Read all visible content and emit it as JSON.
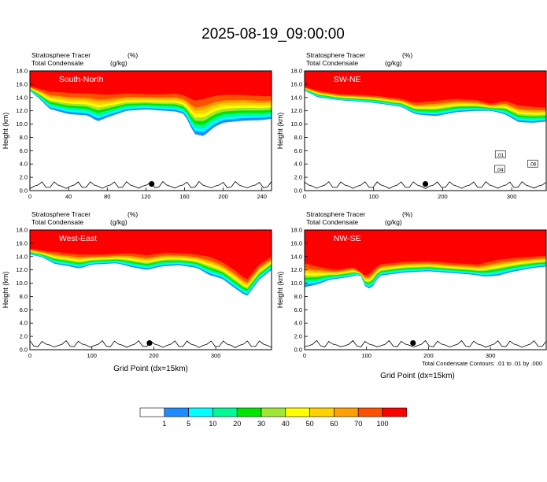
{
  "figure": {
    "title": "2025-08-19_09:00:00",
    "contour_note": "Total Condensate Contours: .01 to .01 by .000",
    "colorbar": {
      "colors": [
        "#ffffff",
        "#1e8cff",
        "#00ffff",
        "#00fa96",
        "#00e600",
        "#a0e632",
        "#ffff00",
        "#ffd200",
        "#ffa000",
        "#ff5000",
        "#ff0000"
      ],
      "labels": [
        "1",
        "5",
        "10",
        "20",
        "30",
        "40",
        "50",
        "60",
        "70",
        "100"
      ]
    }
  },
  "chart_data": [
    {
      "type": "heatmap",
      "title": "South-North",
      "field_label": "Stratosphere Tracer",
      "field_unit": "(%)",
      "contour_label": "Total Condensate",
      "contour_unit": "(g/kg)",
      "ylabel": "Height (km)",
      "xlabel": "",
      "xlim": [
        0,
        250
      ],
      "ylim": [
        0,
        18
      ],
      "xticks": [
        0,
        40,
        80,
        120,
        160,
        200,
        240
      ],
      "yticks": [
        "0.0",
        "2.0",
        "4.0",
        "6.0",
        "8.0",
        "10.0",
        "12.0",
        "14.0",
        "16.0",
        "18.0"
      ],
      "marker": {
        "x": 126,
        "y": 1.0
      },
      "contour_labels": [],
      "red_top": [
        [
          0,
          15.7
        ],
        [
          10,
          15.3
        ],
        [
          20,
          14.9
        ],
        [
          40,
          14.7
        ],
        [
          60,
          14.6
        ],
        [
          80,
          14.4
        ],
        [
          100,
          14.6
        ],
        [
          120,
          14.5
        ],
        [
          140,
          14.5
        ],
        [
          150,
          14.6
        ],
        [
          160,
          14.3
        ],
        [
          170,
          13.5
        ],
        [
          180,
          13.8
        ],
        [
          190,
          14.2
        ],
        [
          200,
          14.4
        ],
        [
          220,
          14.4
        ],
        [
          240,
          14.2
        ],
        [
          250,
          14.2
        ]
      ],
      "cloud_bottom": [
        [
          0,
          15.0
        ],
        [
          10,
          13.8
        ],
        [
          20,
          12.3
        ],
        [
          40,
          11.5
        ],
        [
          60,
          11.3
        ],
        [
          70,
          10.4
        ],
        [
          80,
          11.0
        ],
        [
          100,
          12.0
        ],
        [
          120,
          12.2
        ],
        [
          140,
          12.0
        ],
        [
          150,
          11.9
        ],
        [
          160,
          11.5
        ],
        [
          170,
          8.5
        ],
        [
          180,
          8.2
        ],
        [
          190,
          9.5
        ],
        [
          200,
          10.2
        ],
        [
          220,
          10.5
        ],
        [
          240,
          10.6
        ],
        [
          250,
          10.8
        ]
      ]
    },
    {
      "type": "heatmap",
      "title": "SW-NE",
      "field_label": "Stratosphere Tracer",
      "field_unit": "(%)",
      "contour_label": "Total Condensate",
      "contour_unit": "(g/kg)",
      "ylabel": "Height (km)",
      "xlabel": "",
      "xlim": [
        0,
        350
      ],
      "ylim": [
        0,
        18
      ],
      "xticks": [
        0,
        100,
        200,
        300
      ],
      "yticks": [
        "0.0",
        "2.0",
        "4.0",
        "6.0",
        "8.0",
        "10.0",
        "12.0",
        "14.0",
        "16.0",
        "18.0"
      ],
      "marker": {
        "x": 175,
        "y": 1.0
      },
      "contour_labels": [
        {
          "text": ".01",
          "x": 283,
          "y": 5.4
        },
        {
          "text": ".04",
          "x": 282,
          "y": 3.2
        },
        {
          "text": ".06",
          "x": 330,
          "y": 4.0
        }
      ],
      "red_top": [
        [
          0,
          15.6
        ],
        [
          20,
          15.0
        ],
        [
          50,
          14.5
        ],
        [
          100,
          14.3
        ],
        [
          140,
          13.8
        ],
        [
          160,
          13.2
        ],
        [
          190,
          13.5
        ],
        [
          220,
          13.8
        ],
        [
          250,
          13.6
        ],
        [
          270,
          13.0
        ],
        [
          290,
          13.5
        ],
        [
          310,
          12.8
        ],
        [
          330,
          12.6
        ],
        [
          350,
          12.5
        ]
      ],
      "cloud_bottom": [
        [
          0,
          15.0
        ],
        [
          20,
          14.0
        ],
        [
          50,
          13.6
        ],
        [
          100,
          13.2
        ],
        [
          140,
          12.6
        ],
        [
          160,
          11.5
        ],
        [
          190,
          11.2
        ],
        [
          220,
          11.8
        ],
        [
          250,
          12.0
        ],
        [
          270,
          12.0
        ],
        [
          290,
          11.5
        ],
        [
          310,
          10.3
        ],
        [
          330,
          10.2
        ],
        [
          350,
          10.4
        ]
      ]
    },
    {
      "type": "heatmap",
      "title": "West-East",
      "field_label": "Stratosphere Tracer",
      "field_unit": "(%)",
      "contour_label": "Total Condensate",
      "contour_unit": "(g/kg)",
      "ylabel": "Height (km)",
      "xlabel": "Grid Point (dx=15km)",
      "xlim": [
        0,
        390
      ],
      "ylim": [
        0,
        18
      ],
      "xticks": [
        0,
        100,
        200,
        300
      ],
      "yticks": [
        "0.0",
        "2.0",
        "4.0",
        "6.0",
        "8.0",
        "10.0",
        "12.0",
        "14.0",
        "16.0",
        "18.0"
      ],
      "marker": {
        "x": 193,
        "y": 1.0
      },
      "contour_labels": [],
      "red_top": [
        [
          0,
          15.2
        ],
        [
          20,
          14.9
        ],
        [
          50,
          14.6
        ],
        [
          80,
          14.3
        ],
        [
          120,
          14.3
        ],
        [
          160,
          14.5
        ],
        [
          190,
          14.2
        ],
        [
          220,
          14.6
        ],
        [
          260,
          14.4
        ],
        [
          290,
          14.0
        ],
        [
          310,
          13.2
        ],
        [
          330,
          12.0
        ],
        [
          350,
          10.5
        ],
        [
          370,
          12.8
        ],
        [
          390,
          14.0
        ]
      ],
      "cloud_bottom": [
        [
          0,
          14.3
        ],
        [
          20,
          13.9
        ],
        [
          40,
          12.9
        ],
        [
          60,
          12.6
        ],
        [
          80,
          12.2
        ],
        [
          100,
          12.8
        ],
        [
          140,
          13.0
        ],
        [
          170,
          12.3
        ],
        [
          190,
          12.0
        ],
        [
          210,
          12.5
        ],
        [
          240,
          12.7
        ],
        [
          270,
          12.3
        ],
        [
          290,
          11.2
        ],
        [
          310,
          10.7
        ],
        [
          330,
          9.3
        ],
        [
          350,
          8.0
        ],
        [
          370,
          10.5
        ],
        [
          390,
          12.0
        ]
      ]
    },
    {
      "type": "heatmap",
      "title": "NW-SE",
      "field_label": "Stratosphere Tracer",
      "field_unit": "(%)",
      "contour_label": "Total Condensate",
      "contour_unit": "(g/kg)",
      "ylabel": "Height (km)",
      "xlabel": "Grid Point (dx=15km)",
      "xlim": [
        0,
        390
      ],
      "ylim": [
        0,
        18
      ],
      "xticks": [
        0,
        100,
        200,
        300
      ],
      "yticks": [
        "0.0",
        "2.0",
        "4.0",
        "6.0",
        "8.0",
        "10.0",
        "12.0",
        "14.0",
        "16.0",
        "18.0"
      ],
      "marker": {
        "x": 175,
        "y": 1.0
      },
      "contour_labels": [],
      "red_top": [
        [
          0,
          13.0
        ],
        [
          20,
          12.5
        ],
        [
          50,
          12.0
        ],
        [
          80,
          12.4
        ],
        [
          100,
          11.0
        ],
        [
          120,
          12.8
        ],
        [
          160,
          13.2
        ],
        [
          200,
          13.3
        ],
        [
          240,
          13.0
        ],
        [
          280,
          12.8
        ],
        [
          310,
          13.5
        ],
        [
          340,
          13.8
        ],
        [
          370,
          14.0
        ],
        [
          390,
          14.1
        ]
      ],
      "cloud_bottom": [
        [
          0,
          9.4
        ],
        [
          20,
          9.8
        ],
        [
          40,
          10.5
        ],
        [
          70,
          10.9
        ],
        [
          90,
          11.3
        ],
        [
          100,
          9.0
        ],
        [
          110,
          9.5
        ],
        [
          120,
          11.1
        ],
        [
          160,
          11.6
        ],
        [
          200,
          11.8
        ],
        [
          240,
          11.5
        ],
        [
          270,
          11.3
        ],
        [
          290,
          11.0
        ],
        [
          310,
          11.1
        ],
        [
          340,
          11.8
        ],
        [
          370,
          12.3
        ],
        [
          390,
          12.5
        ]
      ]
    }
  ]
}
